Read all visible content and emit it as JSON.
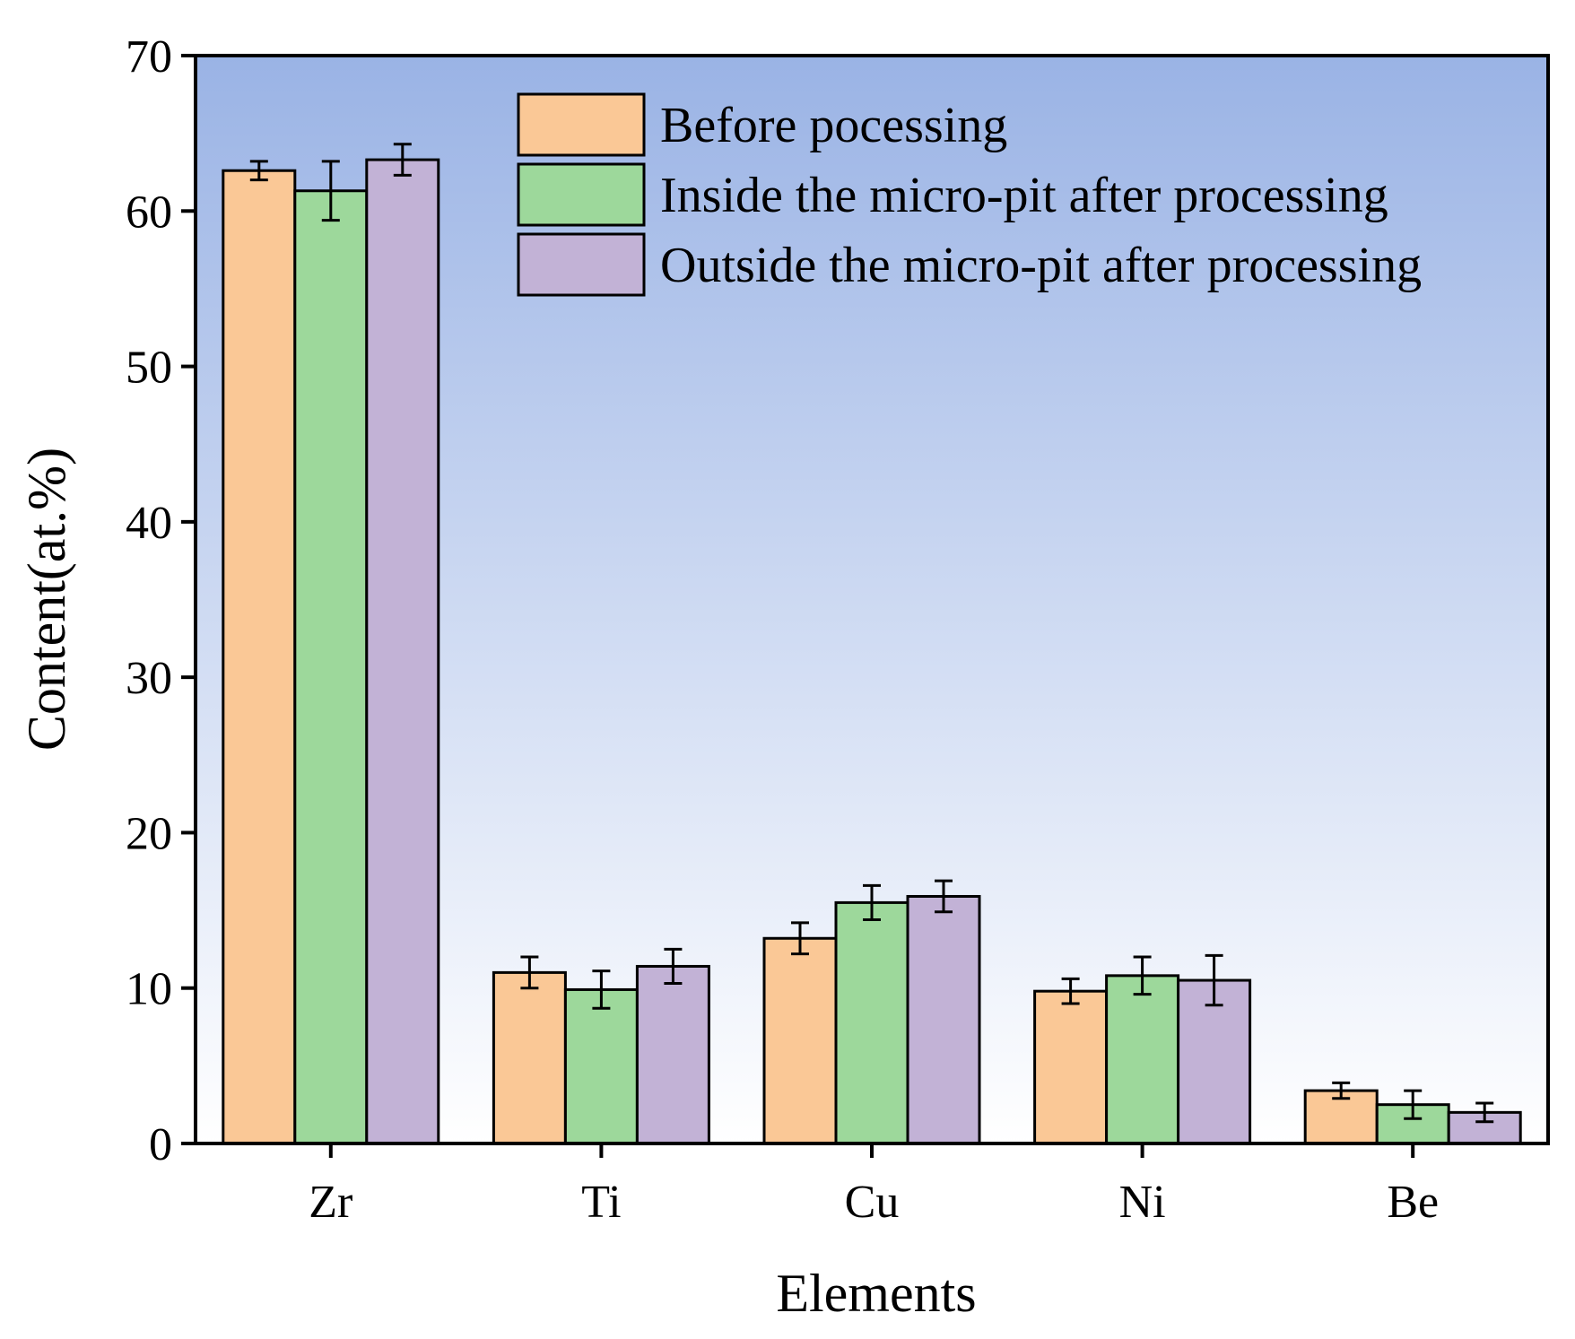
{
  "chart_data": {
    "type": "bar",
    "xlabel": "Elements",
    "ylabel": "Content(at.%)",
    "ylim": [
      0,
      70
    ],
    "yticks": [
      0,
      10,
      20,
      30,
      40,
      50,
      60,
      70
    ],
    "categories": [
      "Zr",
      "Ti",
      "Cu",
      "Ni",
      "Be"
    ],
    "series": [
      {
        "name": "Before pocessing",
        "color": "#FAC896",
        "values": [
          62.6,
          11.0,
          13.2,
          9.8,
          3.4
        ],
        "errors": [
          0.6,
          1.0,
          1.0,
          0.8,
          0.5
        ]
      },
      {
        "name": "Inside the micro-pit after processing",
        "color": "#9DD89B",
        "values": [
          61.3,
          9.9,
          15.5,
          10.8,
          2.5
        ],
        "errors": [
          1.9,
          1.2,
          1.1,
          1.2,
          0.9
        ]
      },
      {
        "name": "Outside the micro-pit after processing",
        "color": "#C2B2D6",
        "values": [
          63.3,
          11.4,
          15.9,
          10.5,
          2.0
        ],
        "errors": [
          1.0,
          1.1,
          1.0,
          1.6,
          0.6
        ]
      }
    ],
    "legend_position": "top-right",
    "background_gradient": {
      "top": "#9AB3E5",
      "bottom": "#FFFFFF"
    }
  }
}
